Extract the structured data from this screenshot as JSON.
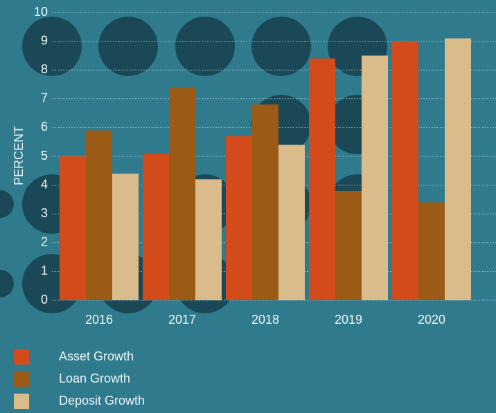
{
  "chart_data": {
    "type": "bar",
    "ylabel": "PERCENT",
    "categories": [
      "2016",
      "2017",
      "2018",
      "2019",
      "2020"
    ],
    "series": [
      {
        "name": "Asset Growth",
        "color": "#d34a1b",
        "values": [
          5.0,
          5.1,
          5.7,
          8.4,
          9.0
        ]
      },
      {
        "name": "Loan Growth",
        "color": "#9b5a16",
        "values": [
          5.9,
          7.4,
          6.8,
          3.8,
          3.4
        ]
      },
      {
        "name": "Deposit Growth",
        "color": "#d9bb8c",
        "values": [
          4.4,
          4.2,
          5.4,
          8.5,
          9.1
        ]
      }
    ],
    "ylim": [
      0,
      10
    ],
    "yticks": [
      0,
      1,
      2,
      3,
      4,
      5,
      6,
      7,
      8,
      9,
      10
    ],
    "grid": true,
    "legend": "bottom-left"
  }
}
